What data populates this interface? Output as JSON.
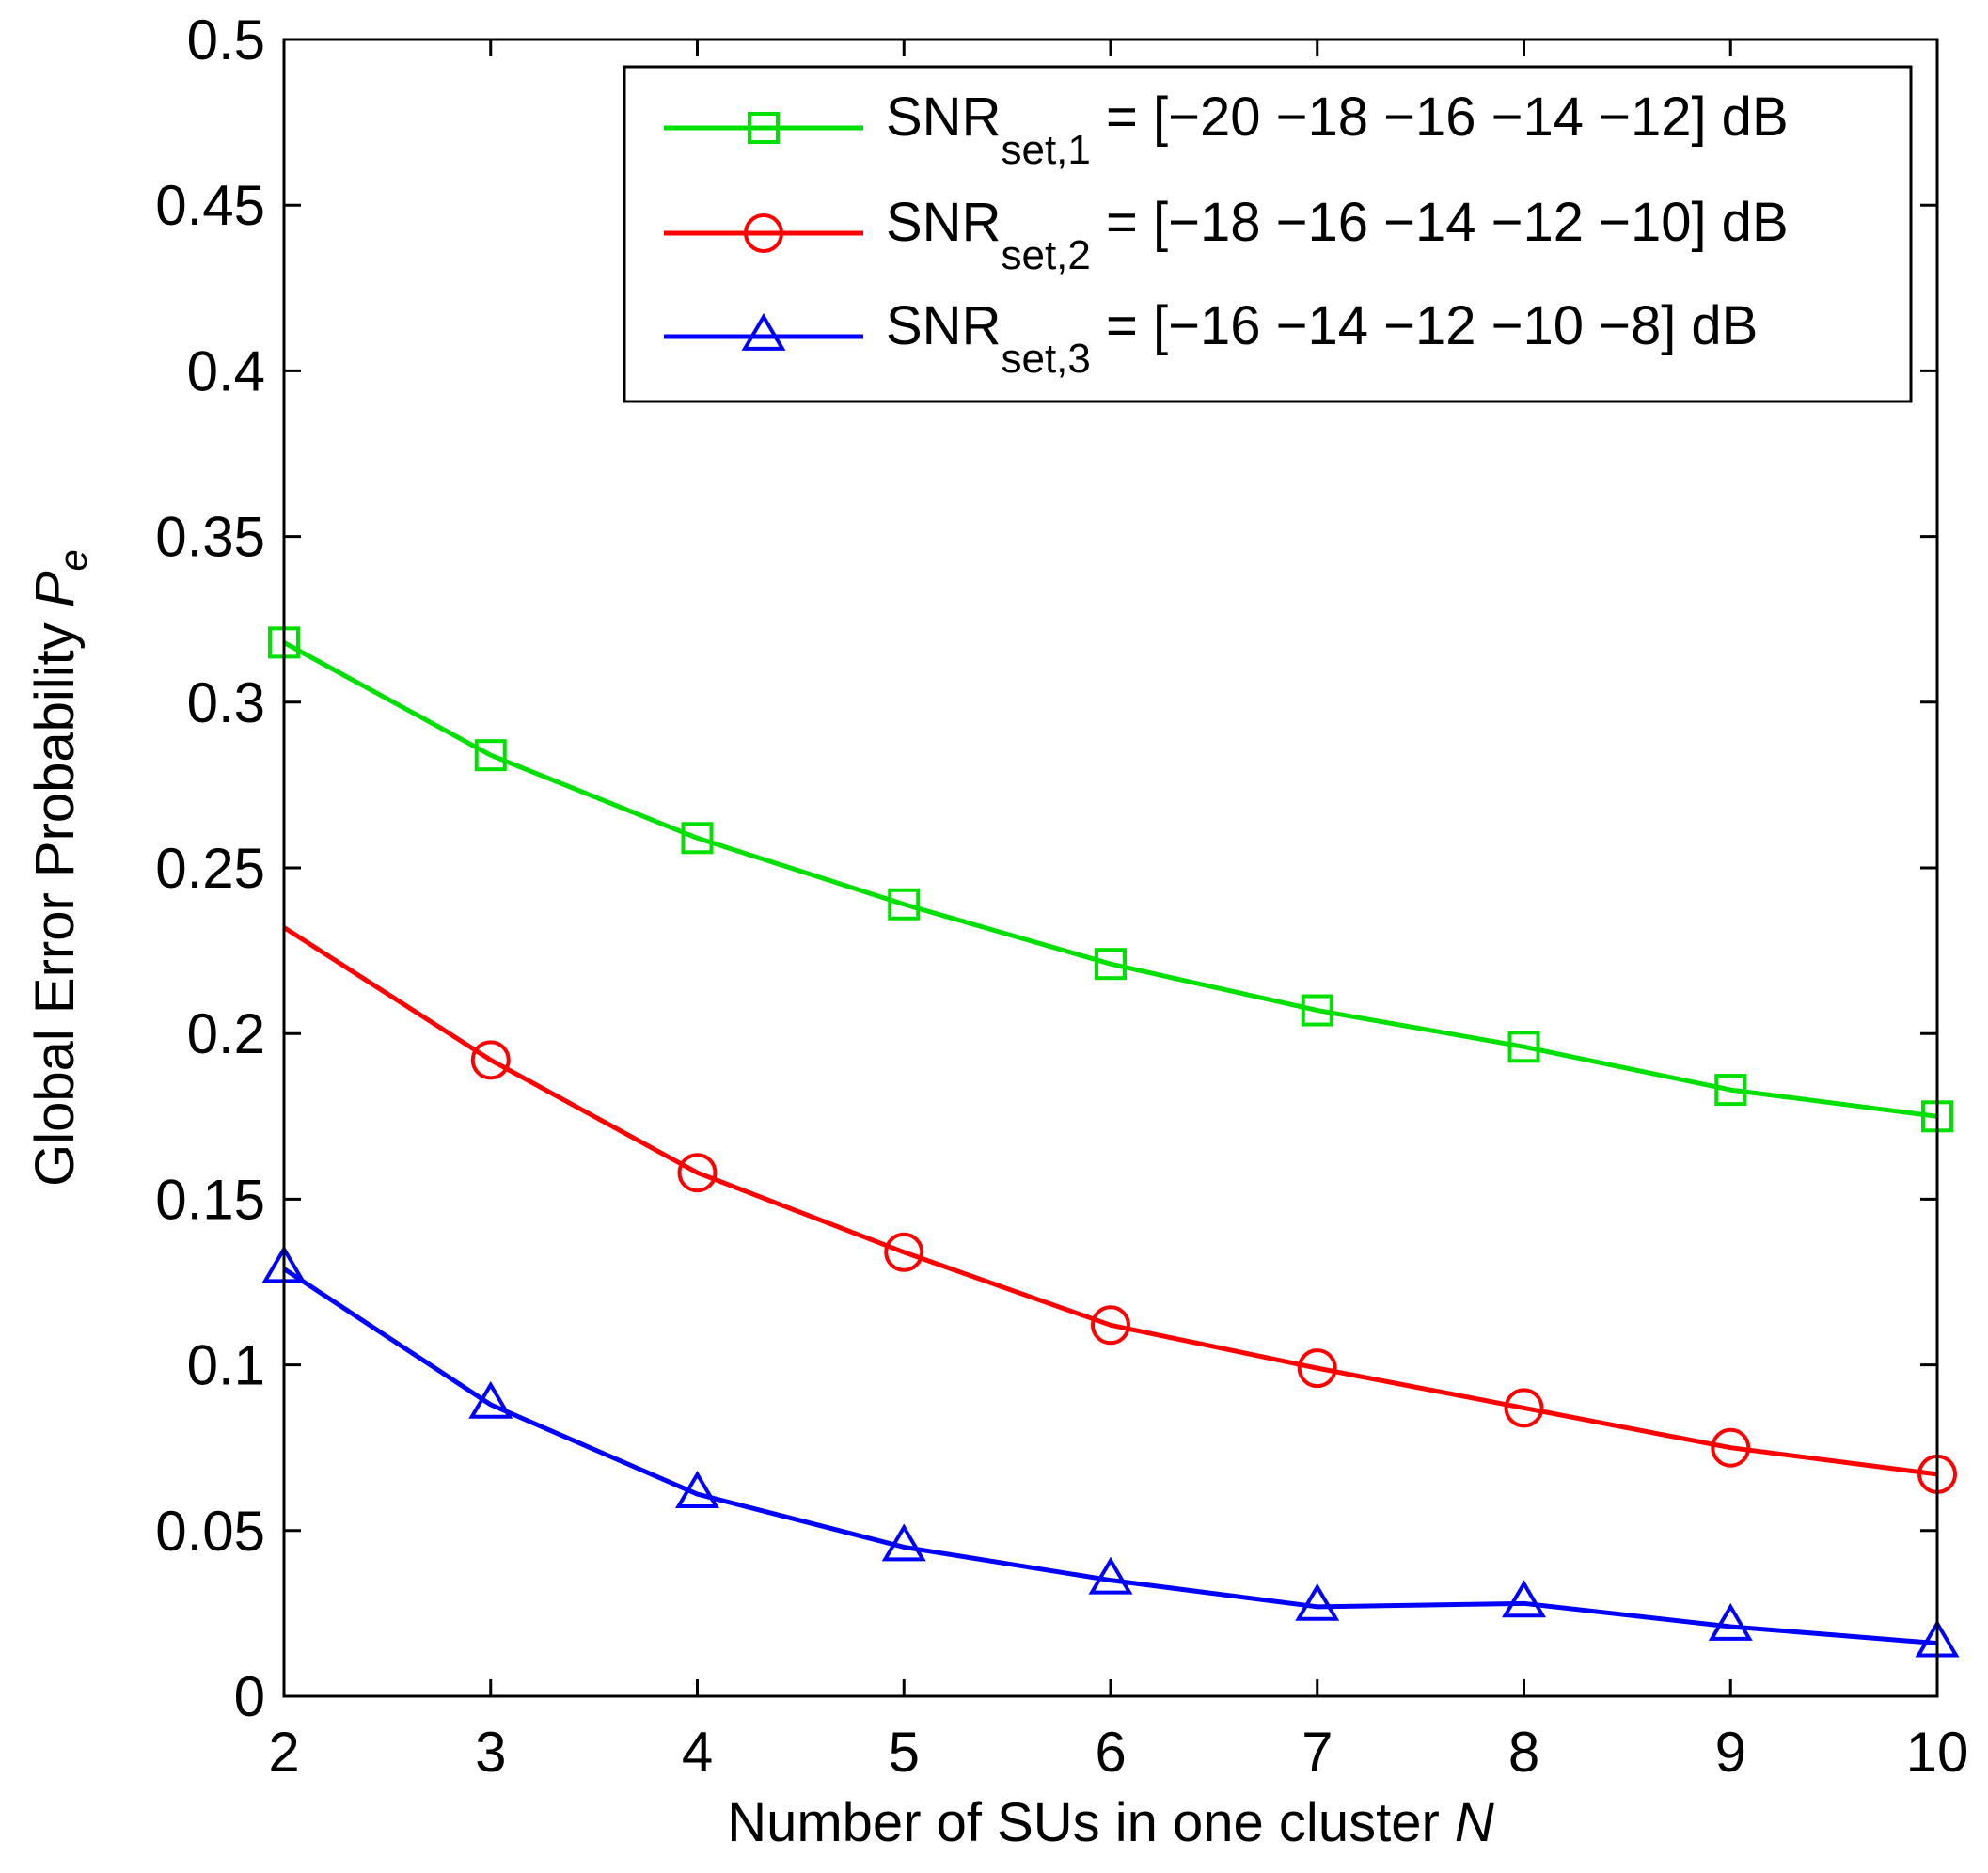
{
  "chart_data": {
    "type": "line",
    "title": "",
    "xlabel": "Number of SUs in one cluster",
    "xlabel_var": "N",
    "ylabel": "Global Error Probability",
    "ylabel_var": "P",
    "ylabel_var_sub": "e",
    "x": [
      2,
      3,
      4,
      5,
      6,
      7,
      8,
      9,
      10
    ],
    "xlim": [
      2,
      10
    ],
    "ylim": [
      0,
      0.5
    ],
    "xticks": [
      "2",
      "3",
      "4",
      "5",
      "6",
      "7",
      "8",
      "9",
      "10"
    ],
    "yticks": [
      "0",
      "0.05",
      "0.1",
      "0.15",
      "0.2",
      "0.25",
      "0.3",
      "0.35",
      "0.4",
      "0.45",
      "0.5"
    ],
    "grid": false,
    "legend_position": "top-right",
    "series": [
      {
        "name": "SNR_set,1 = [−20 −18 −16 −14 −12] dB",
        "legend_main": "SNR",
        "legend_sub": "set,1",
        "legend_rest": " = [−20 −18 −16 −14 −12] dB",
        "color": "#00e000",
        "marker": "square",
        "marker_indices": [
          0,
          1,
          2,
          3,
          4,
          5,
          6,
          7,
          8
        ],
        "values": [
          0.318,
          0.284,
          0.259,
          0.239,
          0.221,
          0.207,
          0.196,
          0.183,
          0.175
        ]
      },
      {
        "name": "SNR_set,2 = [−18 −16 −14 −12 −10] dB",
        "legend_main": "SNR",
        "legend_sub": "set,2",
        "legend_rest": " = [−18 −16 −14 −12 −10] dB",
        "color": "#ff0000",
        "marker": "circle",
        "marker_indices": [
          1,
          2,
          3,
          4,
          5,
          6,
          7,
          8
        ],
        "values": [
          0.232,
          0.192,
          0.158,
          0.134,
          0.112,
          0.099,
          0.087,
          0.075,
          0.067
        ]
      },
      {
        "name": "SNR_set,3 = [−16 −14 −12 −10 −8] dB",
        "legend_main": "SNR",
        "legend_sub": "set,3",
        "legend_rest": " = [−16 −14 −12 −10 −8] dB",
        "color": "#0000ff",
        "marker": "triangle",
        "marker_indices": [
          0,
          1,
          2,
          3,
          4,
          5,
          6,
          7,
          8
        ],
        "values": [
          0.129,
          0.088,
          0.061,
          0.045,
          0.035,
          0.027,
          0.028,
          0.021,
          0.016
        ]
      }
    ]
  }
}
